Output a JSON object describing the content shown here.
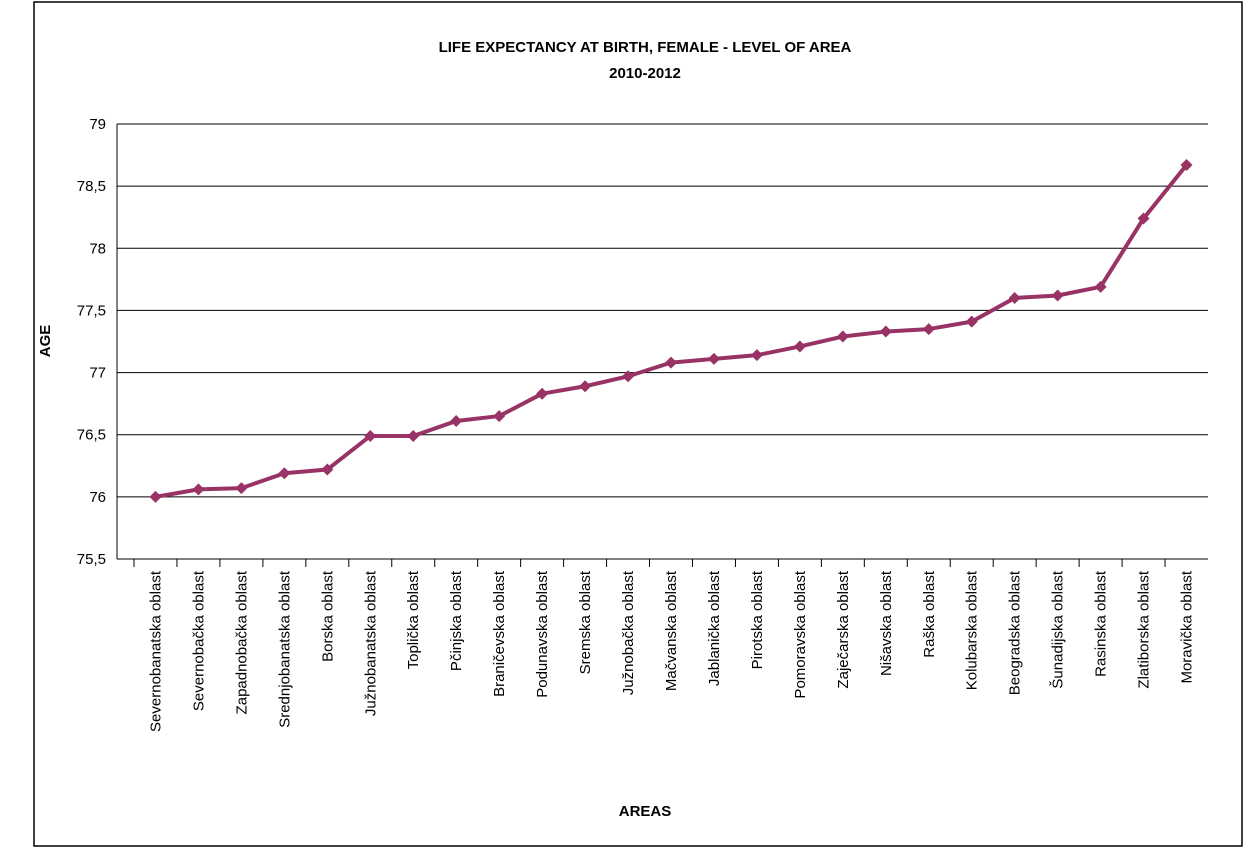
{
  "chart_data": {
    "type": "line",
    "title": "LIFE EXPECTANCY AT BIRTH, FEMALE - LEVEL OF AREA",
    "subtitle": "2010-2012",
    "x_label": "AREAS",
    "y_label": "AGE",
    "categories": [
      "Severnobanatska oblast",
      "Severnobačka oblast",
      "Zapadnobačka oblast",
      "Srednjobanatska oblast",
      "Borska oblast",
      "Južnobanatska oblast",
      "Toplička oblast",
      "Pčinjska oblast",
      "Braničevska oblast",
      "Podunavska oblast",
      "Sremska oblast",
      "Južnobačka oblast",
      "Mačvanska oblast",
      "Jablanička oblast",
      "Pirotska oblast",
      "Pomoravska oblast",
      "Zaječarska oblast",
      "Nišavska oblast",
      "Raška oblast",
      "Kolubarska oblast",
      "Beogradska oblast",
      "Šunadijska oblast",
      "Rasinska oblast",
      "Zlatiborska oblast",
      "Moravička oblast"
    ],
    "values": [
      76.0,
      76.06,
      76.07,
      76.19,
      76.22,
      76.49,
      76.49,
      76.61,
      76.65,
      76.83,
      76.89,
      76.97,
      77.08,
      77.11,
      77.14,
      77.21,
      77.29,
      77.33,
      77.35,
      77.41,
      77.6,
      77.62,
      77.69,
      78.24,
      78.67
    ],
    "color": "#993366",
    "ylim": [
      75.5,
      79
    ],
    "yticks": [
      {
        "value": 75.5,
        "label": "75,5"
      },
      76,
      {
        "value": 76.5,
        "label": "76,5"
      },
      77,
      {
        "value": 77.5,
        "label": "77,5"
      },
      78,
      {
        "value": 78.5,
        "label": "78,5"
      },
      79
    ],
    "grid": true
  }
}
